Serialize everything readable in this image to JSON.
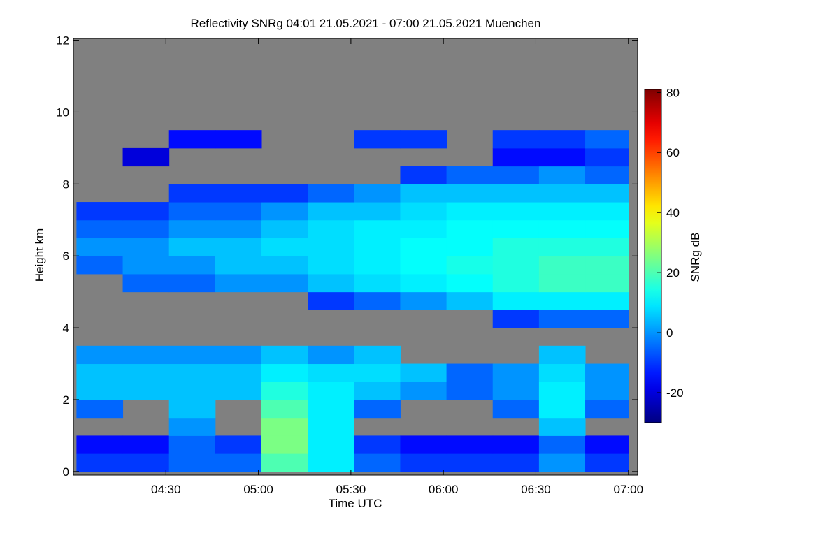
{
  "chart_data": {
    "type": "heatmap",
    "title": "Reflectivity SNRg   04:01 21.05.2021 - 07:00 21.05.2021 Muenchen",
    "x_label": "Time UTC",
    "y_label": "Height km",
    "colorbar_label": "SNRg dB",
    "xlim": [
      "04:00",
      "07:03"
    ],
    "xticks": [
      "04:30",
      "05:00",
      "05:30",
      "06:00",
      "06:30",
      "07:00"
    ],
    "ylim": [
      -0.1,
      12.05
    ],
    "yticks": [
      0,
      2,
      4,
      6,
      8,
      10,
      12
    ],
    "zlim": [
      -30,
      81
    ],
    "zticks": [
      -20,
      0,
      20,
      40,
      60,
      80
    ],
    "colormap": "jet",
    "background": "#808080",
    "x_bins": [
      "04:01",
      "04:16",
      "04:31",
      "04:46",
      "05:01",
      "05:16",
      "05:31",
      "05:46",
      "06:01",
      "06:16",
      "06:31",
      "06:46",
      "07:00"
    ],
    "y_bins": [
      0,
      0.5,
      1,
      1.5,
      2,
      2.5,
      3,
      3.5,
      4,
      4.5,
      5,
      5.5,
      6,
      6.5,
      7,
      7.5,
      8,
      8.5,
      9,
      9.5,
      10
    ],
    "z": [
      [
        -10,
        -10,
        -5,
        -5,
        20,
        10,
        -5,
        -10,
        -10,
        -10,
        0,
        -10
      ],
      [
        -15,
        -15,
        -5,
        -10,
        25,
        10,
        -10,
        -15,
        -15,
        -15,
        -5,
        -15
      ],
      [
        null,
        null,
        0,
        null,
        25,
        10,
        null,
        null,
        null,
        null,
        5,
        null
      ],
      [
        -5,
        null,
        5,
        null,
        20,
        10,
        -5,
        null,
        null,
        -5,
        10,
        -5
      ],
      [
        5,
        5,
        5,
        5,
        15,
        10,
        5,
        0,
        -5,
        0,
        10,
        0
      ],
      [
        5,
        5,
        5,
        5,
        10,
        8,
        8,
        5,
        -5,
        0,
        8,
        0
      ],
      [
        0,
        0,
        0,
        0,
        5,
        0,
        5,
        null,
        null,
        null,
        5,
        null
      ],
      [
        null,
        null,
        null,
        null,
        null,
        null,
        null,
        null,
        null,
        null,
        null,
        null
      ],
      [
        null,
        null,
        null,
        null,
        null,
        null,
        null,
        null,
        null,
        -10,
        -5,
        -5
      ],
      [
        null,
        null,
        null,
        null,
        null,
        -10,
        -5,
        0,
        5,
        10,
        10,
        10
      ],
      [
        null,
        -5,
        -5,
        0,
        0,
        5,
        8,
        10,
        12,
        15,
        18,
        18
      ],
      [
        -5,
        0,
        0,
        5,
        5,
        8,
        10,
        12,
        14,
        15,
        18,
        18
      ],
      [
        0,
        0,
        5,
        5,
        8,
        8,
        10,
        12,
        12,
        15,
        15,
        15
      ],
      [
        -5,
        -5,
        0,
        0,
        5,
        8,
        10,
        10,
        12,
        12,
        12,
        12
      ],
      [
        -10,
        -10,
        -5,
        -5,
        0,
        5,
        5,
        8,
        10,
        10,
        10,
        10
      ],
      [
        null,
        null,
        -10,
        -10,
        -10,
        -5,
        0,
        5,
        5,
        5,
        5,
        5
      ],
      [
        null,
        null,
        null,
        null,
        null,
        null,
        null,
        -10,
        -5,
        -5,
        0,
        -5
      ],
      [
        null,
        -20,
        null,
        null,
        null,
        null,
        null,
        null,
        null,
        -15,
        -15,
        -10
      ],
      [
        null,
        null,
        -15,
        -15,
        null,
        null,
        -10,
        -10,
        null,
        -10,
        -10,
        -5
      ],
      [
        null,
        null,
        null,
        null,
        null,
        null,
        null,
        null,
        null,
        null,
        null,
        null
      ]
    ]
  }
}
